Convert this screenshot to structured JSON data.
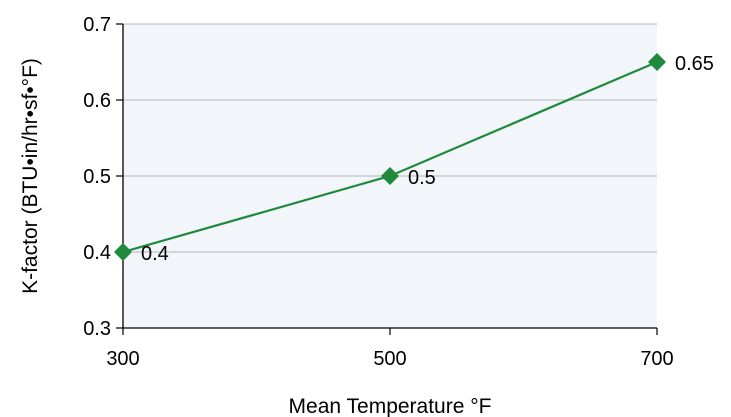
{
  "chart_data": {
    "type": "line",
    "title": "",
    "xlabel": "Mean Temperature °F",
    "ylabel": "K-factor (BTU•in/hr•sf•°F)",
    "x": [
      300,
      500,
      700
    ],
    "series": [
      {
        "values": [
          0.4,
          0.5,
          0.65
        ],
        "data_labels": [
          "0.4",
          "0.5",
          "0.65"
        ]
      }
    ],
    "xlim": [
      300,
      700
    ],
    "ylim": [
      0.3,
      0.7
    ],
    "x_ticks": [
      "300",
      "500",
      "700"
    ],
    "y_ticks": [
      "0.3",
      "0.4",
      "0.5",
      "0.6",
      "0.7"
    ],
    "grid": "horizontal",
    "legend": "none",
    "colors": {
      "line": "#1f8a3c",
      "marker": "#1f8a3c",
      "plot_background": "#f2f5fa",
      "grid": "#b8b8b8",
      "axis": "#000000"
    }
  }
}
